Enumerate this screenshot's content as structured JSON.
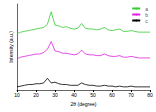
{
  "chart_data": {
    "type": "line",
    "x_label": "2θ (degree)",
    "y_label": "Intensity (a.u.)",
    "x": [
      10,
      12,
      14,
      16,
      18,
      20,
      22,
      24,
      26,
      28,
      30,
      32,
      34,
      36,
      38,
      40,
      42,
      44,
      46,
      48,
      50,
      52,
      54,
      56,
      58,
      60,
      62,
      64,
      66,
      68,
      70,
      72,
      74,
      76,
      78,
      80
    ],
    "series": [
      {
        "name": "a",
        "color": "#33cc33",
        "values": [
          72,
          74,
          75,
          76,
          77,
          78,
          79,
          80,
          84,
          100,
          83,
          82,
          80,
          81,
          79,
          78,
          79,
          85,
          79,
          78,
          78,
          77,
          78,
          80,
          77,
          76,
          77,
          78,
          75,
          75,
          76,
          75,
          74,
          74,
          74,
          74
        ]
      },
      {
        "name": "b",
        "color": "#e020e0",
        "values": [
          40,
          42,
          43,
          44,
          45,
          46,
          46,
          48,
          52,
          62,
          50,
          49,
          47,
          47,
          46,
          45,
          46,
          51,
          46,
          45,
          45,
          44,
          44,
          46,
          44,
          43,
          43,
          44,
          42,
          42,
          43,
          42,
          41,
          41,
          41,
          41
        ]
      },
      {
        "name": "c",
        "color": "#000000",
        "values": [
          4,
          5,
          6,
          7,
          7,
          8,
          8,
          9,
          15,
          9,
          10,
          8,
          7,
          7,
          6,
          6,
          6,
          9,
          7,
          6,
          6,
          5,
          5,
          6,
          5,
          5,
          4,
          5,
          4,
          4,
          5,
          4,
          4,
          4,
          4,
          4
        ]
      }
    ],
    "xlim": [
      10,
      80
    ],
    "xticks": [
      10,
      20,
      30,
      40,
      50,
      60,
      70,
      80
    ],
    "ylim": [
      0,
      110
    ],
    "tick_labels": "x",
    "legend": "top-right",
    "grid": false
  }
}
